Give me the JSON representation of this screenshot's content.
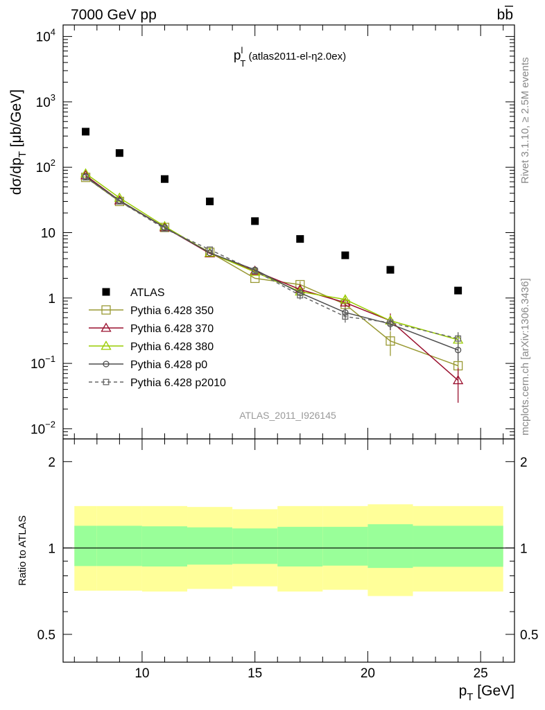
{
  "header": {
    "left": "7000 GeV pp",
    "right_main": "b",
    "right_bar": "b"
  },
  "side": {
    "top": "Rivet 3.1.10, ≥ 2.5M events",
    "bottom": "mcplots.cern.ch [arXiv:1306.3436]"
  },
  "colors": {
    "data": "#000000",
    "band_outer": "#ffff99",
    "band_inner": "#99ff99"
  },
  "chart_data": [
    {
      "type": "scatter",
      "title_main": "p",
      "title_sup": "l",
      "title_sub": "T",
      "title_rest": " (atlas2011-el-η2.0ex)",
      "ylabel": "dσ/dp",
      "ylabel_sub": "T",
      "ylabel_rest": " [μb/GeV]",
      "yscale": "log",
      "ylim": [
        0.007,
        15000
      ],
      "xlim": [
        6.5,
        26.5
      ],
      "yticks": [
        {
          "v": 0.01,
          "m": "10",
          "e": "−2"
        },
        {
          "v": 0.1,
          "m": "10",
          "e": "−1"
        },
        {
          "v": 1,
          "m": "1",
          "e": ""
        },
        {
          "v": 10,
          "m": "10",
          "e": ""
        },
        {
          "v": 100,
          "m": "10",
          "e": "2"
        },
        {
          "v": 1000,
          "m": "10",
          "e": "3"
        },
        {
          "v": 10000,
          "m": "10",
          "e": "4"
        }
      ],
      "watermark": "ATLAS_2011_I926145",
      "legend_placement": "bottom-left",
      "series": [
        {
          "name": "ATLAS",
          "color": "#000000",
          "marker": "filled-square",
          "line": "none",
          "x": [
            7.5,
            9,
            11,
            13,
            15,
            17,
            19,
            21,
            24
          ],
          "y": [
            350,
            165,
            66,
            30,
            15,
            8,
            4.5,
            2.7,
            1.3
          ],
          "err": [
            0,
            0,
            0,
            0,
            0,
            0,
            0,
            0,
            0
          ]
        },
        {
          "name": "Pythia 6.428 350",
          "color": "#999933",
          "marker": "open-square",
          "line": "solid",
          "x": [
            7.5,
            9,
            11,
            13,
            15,
            17,
            19,
            21,
            24
          ],
          "y": [
            70,
            30,
            12,
            5.0,
            2.0,
            1.6,
            0.8,
            0.22,
            0.092
          ],
          "err": [
            0,
            0,
            0,
            0,
            0,
            0.2,
            0.12,
            0.09,
            0.025
          ]
        },
        {
          "name": "Pythia 6.428 370",
          "color": "#990f2d",
          "marker": "open-triangle",
          "line": "solid",
          "x": [
            7.5,
            9,
            11,
            13,
            15,
            17,
            19,
            21,
            24
          ],
          "y": [
            75,
            31,
            12,
            4.8,
            2.6,
            1.35,
            0.85,
            0.45,
            0.055
          ],
          "err": [
            0,
            0,
            0,
            0,
            0,
            0.18,
            0.12,
            0.13,
            0.03
          ]
        },
        {
          "name": "Pythia 6.428 380",
          "color": "#99cc00",
          "marker": "open-triangle",
          "line": "solid",
          "x": [
            7.5,
            9,
            11,
            13,
            15,
            17,
            19,
            21,
            24
          ],
          "y": [
            80,
            34,
            12.5,
            4.9,
            2.5,
            1.25,
            0.95,
            0.45,
            0.23
          ],
          "err": [
            0,
            0,
            0,
            0,
            0,
            0.15,
            0.12,
            0.1,
            0.06
          ]
        },
        {
          "name": "Pythia 6.428 p0",
          "color": "#4d4d4d",
          "marker": "open-circle",
          "line": "solid",
          "x": [
            7.5,
            9,
            11,
            13,
            15,
            17,
            19,
            21,
            24
          ],
          "y": [
            72,
            31,
            12,
            4.9,
            2.7,
            1.2,
            0.6,
            0.4,
            0.16
          ],
          "err": [
            0,
            0,
            0,
            0,
            0,
            0.15,
            0.1,
            0.08,
            0.05
          ]
        },
        {
          "name": "Pythia 6.428 p2010",
          "color": "#666666",
          "marker": "open-square",
          "line": "dashed",
          "x": [
            7.5,
            9,
            11,
            13,
            15,
            17,
            19,
            21,
            24
          ],
          "y": [
            70,
            30,
            11.5,
            5.5,
            2.6,
            1.1,
            0.52,
            0.42,
            0.24
          ],
          "err": [
            0,
            0,
            0,
            0,
            0,
            0.15,
            0.1,
            0.08,
            0.06
          ]
        }
      ]
    },
    {
      "type": "area",
      "ylabel": "Ratio to ATLAS",
      "xlabel": "p",
      "xlabel_sub": "T",
      "xlabel_rest": " [GeV]",
      "xlim": [
        6.5,
        26.5
      ],
      "ylim": [
        0.4,
        2.4
      ],
      "yscale": "log",
      "xticks": [
        10,
        15,
        20,
        25
      ],
      "yticks": [
        {
          "v": 0.5,
          "label": "0.5"
        },
        {
          "v": 1,
          "label": "1"
        },
        {
          "v": 2,
          "label": "2"
        }
      ],
      "reference_line": 1,
      "bins": [
        {
          "lo": 7,
          "hi": 8,
          "outer": [
            0.71,
            1.4
          ],
          "inner": [
            0.865,
            1.195
          ]
        },
        {
          "lo": 8,
          "hi": 10,
          "outer": [
            0.71,
            1.4
          ],
          "inner": [
            0.865,
            1.195
          ]
        },
        {
          "lo": 10,
          "hi": 12,
          "outer": [
            0.705,
            1.4
          ],
          "inner": [
            0.862,
            1.19
          ]
        },
        {
          "lo": 12,
          "hi": 14,
          "outer": [
            0.72,
            1.39
          ],
          "inner": [
            0.875,
            1.18
          ]
        },
        {
          "lo": 14,
          "hi": 16,
          "outer": [
            0.735,
            1.365
          ],
          "inner": [
            0.88,
            1.17
          ]
        },
        {
          "lo": 16,
          "hi": 18,
          "outer": [
            0.705,
            1.4
          ],
          "inner": [
            0.862,
            1.185
          ]
        },
        {
          "lo": 18,
          "hi": 20,
          "outer": [
            0.715,
            1.4
          ],
          "inner": [
            0.868,
            1.185
          ]
        },
        {
          "lo": 20,
          "hi": 22,
          "outer": [
            0.68,
            1.42
          ],
          "inner": [
            0.852,
            1.21
          ]
        },
        {
          "lo": 22,
          "hi": 26,
          "outer": [
            0.705,
            1.4
          ],
          "inner": [
            0.86,
            1.195
          ]
        }
      ]
    }
  ]
}
